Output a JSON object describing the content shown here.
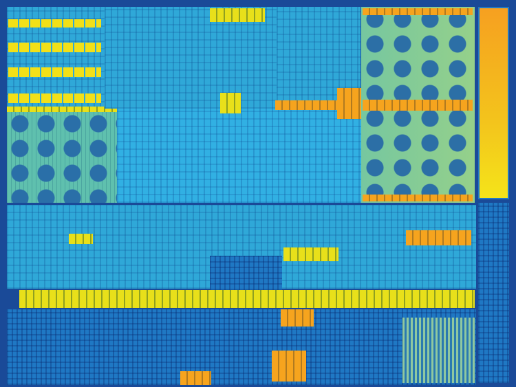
{
  "image": {
    "subject": "die-micrograph",
    "colors": {
      "background": "#1a4a98",
      "logic_cyan": "#2fa8d8",
      "core_teal": "#5fc0ae",
      "gpu_green": "#76c7a0",
      "memory_yellow": "#e8e01a",
      "cache_orange": "#f6a41e",
      "io_blue": "#1f78c4"
    }
  }
}
